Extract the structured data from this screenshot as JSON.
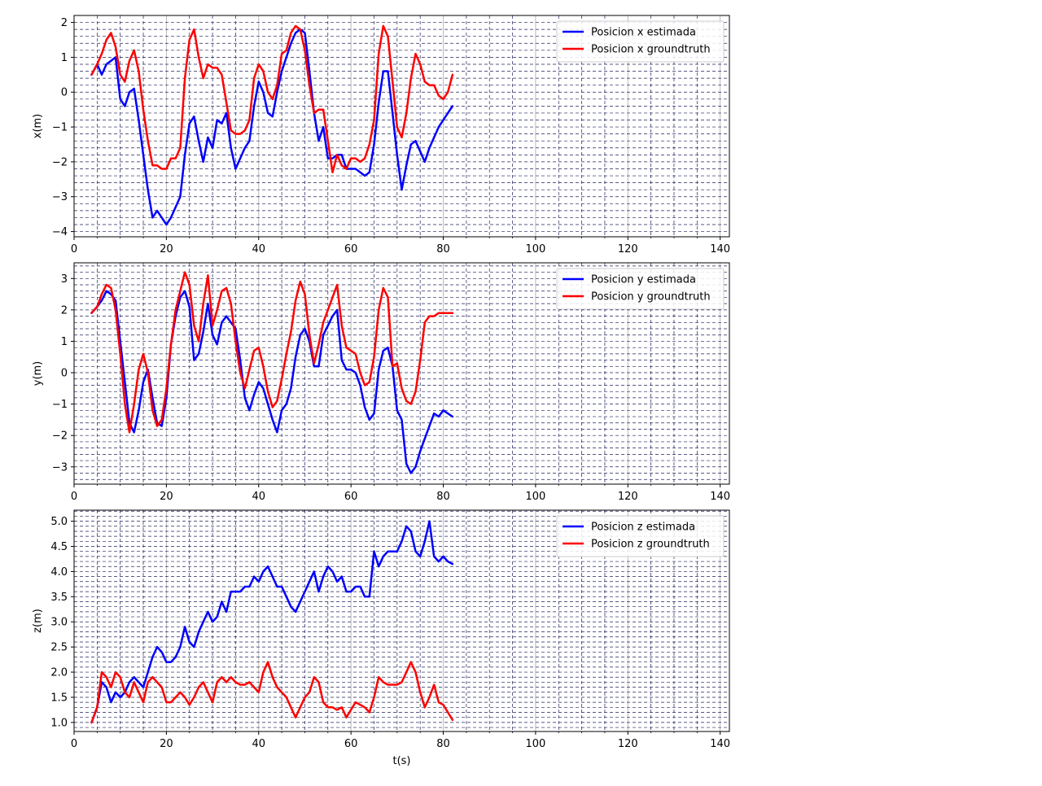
{
  "chart_data": [
    {
      "type": "line",
      "xlabel": "",
      "ylabel": "x(m)",
      "xlim": [
        0,
        142
      ],
      "ylim": [
        -4.15,
        2.2
      ],
      "xticks": [
        0,
        20,
        40,
        60,
        80,
        100,
        120,
        140
      ],
      "yticks": [
        -4,
        -3,
        -2,
        -1,
        0,
        1,
        2
      ],
      "grid": true,
      "legend_position": "top-right",
      "series": [
        {
          "name": "Posicion x estimada",
          "color": "#0000ff",
          "x": [
            3.8,
            5,
            6,
            7,
            8,
            9,
            10,
            11,
            12,
            13,
            14,
            15,
            16,
            17,
            18,
            19,
            20,
            21,
            22,
            23,
            24,
            25,
            26,
            27,
            28,
            29,
            30,
            31,
            32,
            33,
            34,
            35,
            36,
            37,
            38,
            39,
            40,
            41,
            42,
            43,
            44,
            45,
            46,
            47,
            48,
            49,
            50,
            51,
            52,
            53,
            54,
            55,
            56,
            57,
            58,
            59,
            60,
            61,
            62,
            63,
            64,
            65,
            66,
            67,
            68,
            69,
            70,
            71,
            72,
            73,
            74,
            75,
            76,
            77,
            78,
            79,
            80,
            81,
            82
          ],
          "y": [
            0.5,
            0.8,
            0.5,
            0.8,
            0.9,
            1.0,
            -0.2,
            -0.4,
            0.0,
            0.1,
            -0.8,
            -1.8,
            -2.8,
            -3.6,
            -3.4,
            -3.6,
            -3.8,
            -3.6,
            -3.3,
            -3.0,
            -1.8,
            -0.9,
            -0.7,
            -1.4,
            -2.0,
            -1.3,
            -1.6,
            -0.8,
            -0.9,
            -0.6,
            -1.6,
            -2.2,
            -1.9,
            -1.6,
            -1.4,
            -0.4,
            0.3,
            0.0,
            -0.6,
            -0.7,
            0.0,
            0.6,
            1.0,
            1.4,
            1.7,
            1.8,
            1.7,
            0.6,
            -0.6,
            -1.4,
            -1.0,
            -1.9,
            -1.9,
            -1.8,
            -1.8,
            -2.2,
            -2.2,
            -2.2,
            -2.3,
            -2.4,
            -2.3,
            -1.5,
            -0.3,
            0.6,
            0.6,
            -0.6,
            -1.8,
            -2.8,
            -2.1,
            -1.5,
            -1.4,
            -1.7,
            -2.0,
            -1.6,
            -1.3,
            -1.0,
            -0.8,
            -0.6,
            -0.4
          ]
        },
        {
          "name": "Posicion x groundtruth",
          "color": "#ff0000",
          "x": [
            3.8,
            5,
            6,
            7,
            8,
            9,
            10,
            11,
            12,
            13,
            14,
            15,
            16,
            17,
            18,
            19,
            20,
            21,
            22,
            23,
            24,
            25,
            26,
            27,
            28,
            29,
            30,
            31,
            32,
            33,
            34,
            35,
            36,
            37,
            38,
            39,
            40,
            41,
            42,
            43,
            44,
            45,
            46,
            47,
            48,
            49,
            50,
            51,
            52,
            53,
            54,
            55,
            56,
            57,
            58,
            59,
            60,
            61,
            62,
            63,
            64,
            65,
            66,
            67,
            68,
            69,
            70,
            71,
            72,
            73,
            74,
            75,
            76,
            77,
            78,
            79,
            80,
            81,
            82
          ],
          "y": [
            0.5,
            0.8,
            1.1,
            1.5,
            1.7,
            1.3,
            0.5,
            0.3,
            0.9,
            1.2,
            0.6,
            -0.5,
            -1.4,
            -2.1,
            -2.1,
            -2.2,
            -2.2,
            -1.9,
            -1.9,
            -1.6,
            0.4,
            1.5,
            1.8,
            1.0,
            0.4,
            0.8,
            0.7,
            0.7,
            0.5,
            -0.3,
            -1.1,
            -1.2,
            -1.2,
            -1.1,
            -0.8,
            0.4,
            0.8,
            0.6,
            0.0,
            -0.2,
            0.2,
            1.1,
            1.2,
            1.7,
            1.9,
            1.8,
            1.2,
            0.2,
            -0.6,
            -0.5,
            -0.5,
            -1.4,
            -2.3,
            -1.8,
            -2.1,
            -2.2,
            -1.9,
            -1.9,
            -2.0,
            -1.9,
            -1.5,
            -0.8,
            1.1,
            1.9,
            1.6,
            0.3,
            -1.0,
            -1.3,
            -0.6,
            0.4,
            1.1,
            0.8,
            0.3,
            0.2,
            0.2,
            -0.1,
            -0.2,
            0.0,
            0.5
          ]
        }
      ]
    },
    {
      "type": "line",
      "xlabel": "",
      "ylabel": "y(m)",
      "xlim": [
        0,
        142
      ],
      "ylim": [
        -3.55,
        3.5
      ],
      "xticks": [
        0,
        20,
        40,
        60,
        80,
        100,
        120,
        140
      ],
      "yticks": [
        -3,
        -2,
        -1,
        0,
        1,
        2,
        3
      ],
      "grid": true,
      "legend_position": "top-right",
      "series": [
        {
          "name": "Posicion y estimada",
          "color": "#0000ff",
          "x": [
            3.8,
            5,
            6,
            7,
            8,
            9,
            10,
            11,
            12,
            13,
            14,
            15,
            16,
            17,
            18,
            19,
            20,
            21,
            22,
            23,
            24,
            25,
            26,
            27,
            28,
            29,
            30,
            31,
            32,
            33,
            34,
            35,
            36,
            37,
            38,
            39,
            40,
            41,
            42,
            43,
            44,
            45,
            46,
            47,
            48,
            49,
            50,
            51,
            52,
            53,
            54,
            55,
            56,
            57,
            58,
            59,
            60,
            61,
            62,
            63,
            64,
            65,
            66,
            67,
            68,
            69,
            70,
            71,
            72,
            73,
            74,
            75,
            76,
            77,
            78,
            79,
            80,
            81,
            82
          ],
          "y": [
            1.9,
            2.1,
            2.3,
            2.6,
            2.5,
            2.3,
            1.0,
            -0.3,
            -1.6,
            -1.9,
            -1.2,
            -0.3,
            0.1,
            -0.8,
            -1.6,
            -1.7,
            -0.8,
            0.9,
            1.8,
            2.4,
            2.6,
            2.1,
            0.4,
            0.6,
            1.3,
            2.2,
            1.2,
            0.9,
            1.6,
            1.8,
            1.6,
            1.4,
            0.4,
            -0.8,
            -1.2,
            -0.7,
            -0.3,
            -0.5,
            -1.0,
            -1.5,
            -1.9,
            -1.2,
            -1.0,
            -0.5,
            0.5,
            1.2,
            1.4,
            1.0,
            0.2,
            0.2,
            1.2,
            1.5,
            1.8,
            2.0,
            0.4,
            0.1,
            0.1,
            0.0,
            -0.4,
            -1.1,
            -1.5,
            -1.3,
            0.1,
            0.7,
            0.8,
            0.2,
            -1.2,
            -1.5,
            -2.9,
            -3.2,
            -3.0,
            -2.5,
            -2.1,
            -1.7,
            -1.3,
            -1.4,
            -1.2,
            -1.3,
            -1.4
          ]
        },
        {
          "name": "Posicion y groundtruth",
          "color": "#ff0000",
          "x": [
            3.8,
            5,
            6,
            7,
            8,
            9,
            10,
            11,
            12,
            13,
            14,
            15,
            16,
            17,
            18,
            19,
            20,
            21,
            22,
            23,
            24,
            25,
            26,
            27,
            28,
            29,
            30,
            31,
            32,
            33,
            34,
            35,
            36,
            37,
            38,
            39,
            40,
            41,
            42,
            43,
            44,
            45,
            46,
            47,
            48,
            49,
            50,
            51,
            52,
            53,
            54,
            55,
            56,
            57,
            58,
            59,
            60,
            61,
            62,
            63,
            64,
            65,
            66,
            67,
            68,
            69,
            70,
            71,
            72,
            73,
            74,
            75,
            76,
            77,
            78,
            79,
            80,
            81,
            82
          ],
          "y": [
            1.9,
            2.1,
            2.5,
            2.8,
            2.7,
            2.0,
            0.6,
            -1.0,
            -1.9,
            -1.0,
            0.1,
            0.6,
            0.0,
            -1.2,
            -1.7,
            -1.5,
            -0.5,
            0.9,
            2.0,
            2.6,
            3.2,
            2.8,
            1.5,
            1.0,
            2.2,
            3.1,
            1.5,
            2.0,
            2.6,
            2.7,
            2.2,
            1.0,
            0.0,
            -0.5,
            0.1,
            0.7,
            0.8,
            0.2,
            -0.6,
            -1.1,
            -0.9,
            -0.2,
            0.6,
            1.3,
            2.3,
            2.9,
            2.5,
            1.2,
            0.3,
            0.9,
            1.6,
            2.0,
            2.4,
            2.8,
            1.5,
            0.8,
            0.7,
            0.6,
            0.0,
            -0.4,
            -0.3,
            0.5,
            2.0,
            2.7,
            2.4,
            0.2,
            0.3,
            -0.5,
            -0.9,
            -1.0,
            -0.6,
            0.4,
            1.6,
            1.8,
            1.8,
            1.9,
            1.9,
            1.9,
            1.9
          ]
        }
      ]
    },
    {
      "type": "line",
      "xlabel": "t(s)",
      "ylabel": "z(m)",
      "xlim": [
        0,
        142
      ],
      "ylim": [
        0.82,
        5.22
      ],
      "xticks": [
        0,
        20,
        40,
        60,
        80,
        100,
        120,
        140
      ],
      "yticks": [
        1.0,
        1.5,
        2.0,
        2.5,
        3.0,
        3.5,
        4.0,
        4.5,
        5.0
      ],
      "grid": true,
      "legend_position": "top-right",
      "series": [
        {
          "name": "Posicion z estimada",
          "color": "#0000ff",
          "x": [
            3.8,
            5,
            6,
            7,
            8,
            9,
            10,
            11,
            12,
            13,
            14,
            15,
            16,
            17,
            18,
            19,
            20,
            21,
            22,
            23,
            24,
            25,
            26,
            27,
            28,
            29,
            30,
            31,
            32,
            33,
            34,
            35,
            36,
            37,
            38,
            39,
            40,
            41,
            42,
            43,
            44,
            45,
            46,
            47,
            48,
            49,
            50,
            51,
            52,
            53,
            54,
            55,
            56,
            57,
            58,
            59,
            60,
            61,
            62,
            63,
            64,
            65,
            66,
            67,
            68,
            69,
            70,
            71,
            72,
            73,
            74,
            75,
            76,
            77,
            78,
            79,
            80,
            81,
            82
          ],
          "y": [
            1.0,
            1.3,
            1.8,
            1.7,
            1.4,
            1.6,
            1.5,
            1.6,
            1.8,
            1.9,
            1.8,
            1.7,
            2.0,
            2.3,
            2.5,
            2.4,
            2.2,
            2.2,
            2.3,
            2.5,
            2.9,
            2.6,
            2.5,
            2.8,
            3.0,
            3.2,
            3.0,
            3.1,
            3.4,
            3.2,
            3.6,
            3.6,
            3.6,
            3.7,
            3.7,
            3.9,
            3.8,
            4.0,
            4.1,
            3.9,
            3.7,
            3.7,
            3.5,
            3.3,
            3.2,
            3.4,
            3.6,
            3.8,
            4.0,
            3.6,
            3.9,
            4.1,
            4.0,
            3.8,
            3.9,
            3.6,
            3.6,
            3.7,
            3.7,
            3.5,
            3.5,
            4.4,
            4.1,
            4.3,
            4.4,
            4.4,
            4.4,
            4.6,
            4.9,
            4.8,
            4.4,
            4.3,
            4.6,
            5.0,
            4.3,
            4.2,
            4.3,
            4.2,
            4.15
          ]
        },
        {
          "name": "Posicion z groundtruth",
          "color": "#ff0000",
          "x": [
            3.8,
            5,
            6,
            7,
            8,
            9,
            10,
            11,
            12,
            13,
            14,
            15,
            16,
            17,
            18,
            19,
            20,
            21,
            22,
            23,
            24,
            25,
            26,
            27,
            28,
            29,
            30,
            31,
            32,
            33,
            34,
            35,
            36,
            37,
            38,
            39,
            40,
            41,
            42,
            43,
            44,
            45,
            46,
            47,
            48,
            49,
            50,
            51,
            52,
            53,
            54,
            55,
            56,
            57,
            58,
            59,
            60,
            61,
            62,
            63,
            64,
            65,
            66,
            67,
            68,
            69,
            70,
            71,
            72,
            73,
            74,
            75,
            76,
            77,
            78,
            79,
            80,
            81,
            82
          ],
          "y": [
            1.0,
            1.3,
            2.0,
            1.9,
            1.7,
            2.0,
            1.9,
            1.6,
            1.5,
            1.8,
            1.6,
            1.4,
            1.8,
            1.9,
            1.8,
            1.7,
            1.4,
            1.4,
            1.5,
            1.6,
            1.5,
            1.35,
            1.5,
            1.7,
            1.8,
            1.6,
            1.4,
            1.8,
            1.9,
            1.8,
            1.9,
            1.8,
            1.75,
            1.75,
            1.8,
            1.7,
            1.6,
            2.0,
            2.2,
            1.9,
            1.7,
            1.6,
            1.5,
            1.3,
            1.1,
            1.3,
            1.5,
            1.6,
            1.9,
            1.8,
            1.4,
            1.3,
            1.3,
            1.25,
            1.3,
            1.1,
            1.25,
            1.4,
            1.35,
            1.3,
            1.2,
            1.5,
            1.9,
            1.8,
            1.75,
            1.75,
            1.75,
            1.8,
            2.0,
            2.2,
            2.0,
            1.6,
            1.3,
            1.5,
            1.75,
            1.4,
            1.35,
            1.2,
            1.05
          ]
        }
      ]
    }
  ]
}
